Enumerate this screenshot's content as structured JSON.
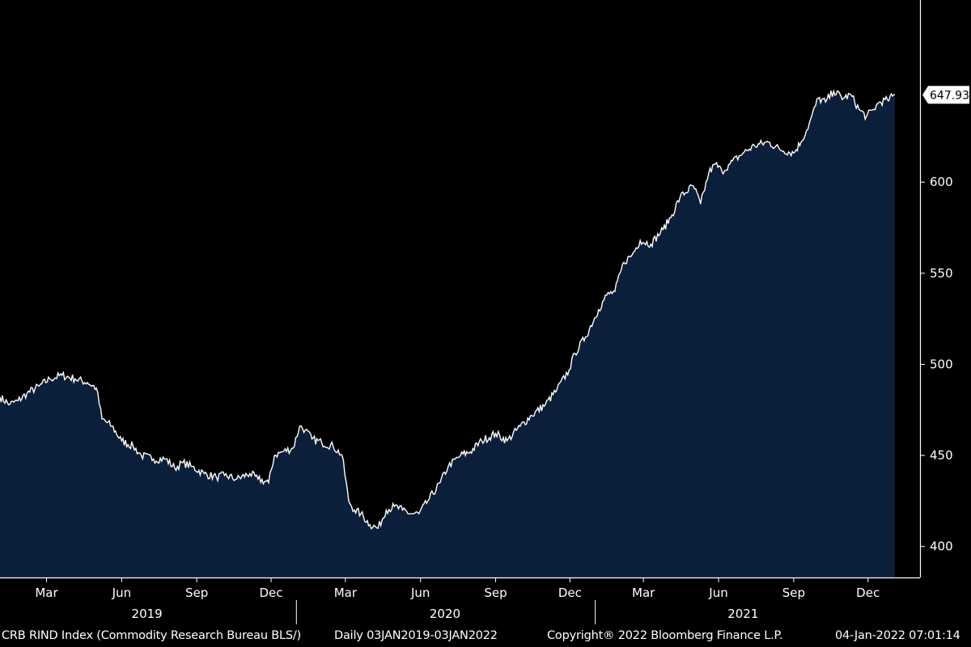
{
  "chart_data": {
    "type": "area",
    "title": "",
    "xlabel": "",
    "ylabel": "",
    "ylim": [
      383,
      700
    ],
    "xlim": [
      "2019-01-03",
      "2022-01-03"
    ],
    "grid": false,
    "y_ticks": [
      "400",
      "450",
      "500",
      "550",
      "600"
    ],
    "x_month_ticks": [
      {
        "label": "Mar",
        "date": "2019-03-01"
      },
      {
        "label": "Jun",
        "date": "2019-06-01"
      },
      {
        "label": "Sep",
        "date": "2019-09-01"
      },
      {
        "label": "Dec",
        "date": "2019-12-01"
      },
      {
        "label": "Mar",
        "date": "2020-03-01"
      },
      {
        "label": "Jun",
        "date": "2020-06-01"
      },
      {
        "label": "Sep",
        "date": "2020-09-01"
      },
      {
        "label": "Dec",
        "date": "2020-12-01"
      },
      {
        "label": "Mar",
        "date": "2021-03-01"
      },
      {
        "label": "Jun",
        "date": "2021-06-01"
      },
      {
        "label": "Sep",
        "date": "2021-09-01"
      },
      {
        "label": "Dec",
        "date": "2021-12-01"
      }
    ],
    "x_years": [
      {
        "label": "2019",
        "date": "2019-07-02"
      },
      {
        "label": "2020",
        "date": "2020-07-01"
      },
      {
        "label": "2021",
        "date": "2021-07-01"
      }
    ],
    "year_separators": [
      "2020-01-01",
      "2021-01-01"
    ],
    "last_value": "647.93",
    "series": [
      {
        "x": [
          "2019-01-03",
          "2019-01-15",
          "2019-01-25",
          "2019-02-05",
          "2019-02-20",
          "2019-03-05",
          "2019-03-20",
          "2019-04-05",
          "2019-04-20",
          "2019-05-01",
          "2019-05-08",
          "2019-05-20",
          "2019-06-01",
          "2019-06-15",
          "2019-06-25",
          "2019-07-10",
          "2019-07-25",
          "2019-08-05",
          "2019-08-15",
          "2019-08-25",
          "2019-09-10",
          "2019-09-25",
          "2019-10-05",
          "2019-10-20",
          "2019-11-05",
          "2019-11-15",
          "2019-11-28",
          "2019-12-05",
          "2019-12-15",
          "2019-12-28",
          "2020-01-05",
          "2020-01-12",
          "2020-01-20",
          "2020-02-01",
          "2020-02-15",
          "2020-02-26",
          "2020-03-05",
          "2020-03-12",
          "2020-03-20",
          "2020-03-31",
          "2020-04-10",
          "2020-04-20",
          "2020-04-30",
          "2020-05-10",
          "2020-05-20",
          "2020-05-30",
          "2020-06-10",
          "2020-06-25",
          "2020-07-05",
          "2020-07-20",
          "2020-08-01",
          "2020-08-15",
          "2020-09-01",
          "2020-09-15",
          "2020-10-01",
          "2020-10-15",
          "2020-11-01",
          "2020-11-15",
          "2020-11-30",
          "2020-12-07",
          "2020-12-20",
          "2021-01-05",
          "2021-01-15",
          "2021-01-25",
          "2021-02-05",
          "2021-02-15",
          "2021-02-25",
          "2021-03-10",
          "2021-03-25",
          "2021-04-05",
          "2021-04-15",
          "2021-05-01",
          "2021-05-10",
          "2021-05-20",
          "2021-05-28",
          "2021-06-05",
          "2021-06-15",
          "2021-07-01",
          "2021-07-15",
          "2021-08-01",
          "2021-08-15",
          "2021-09-01",
          "2021-09-10",
          "2021-09-20",
          "2021-10-01",
          "2021-10-10",
          "2021-10-20",
          "2021-11-01",
          "2021-11-10",
          "2021-11-20",
          "2021-11-29",
          "2021-12-08",
          "2021-12-15",
          "2021-12-25",
          "2022-01-03"
        ],
        "y": [
          482,
          478,
          480,
          484,
          488,
          492,
          494,
          492,
          490,
          487,
          470,
          466,
          458,
          455,
          450,
          448,
          448,
          443,
          446,
          444,
          440,
          438,
          439,
          437,
          440,
          437,
          435,
          450,
          452,
          454,
          466,
          464,
          459,
          457,
          455,
          450,
          425,
          420,
          418,
          412,
          410,
          420,
          422,
          420,
          418,
          418,
          425,
          435,
          444,
          450,
          452,
          458,
          462,
          458,
          466,
          472,
          478,
          486,
          497,
          506,
          515,
          530,
          538,
          540,
          556,
          560,
          568,
          566,
          574,
          582,
          592,
          598,
          588,
          605,
          610,
          606,
          610,
          616,
          620,
          622,
          618,
          616,
          622,
          632,
          646,
          644,
          650,
          646,
          648,
          640,
          636,
          640,
          644,
          645,
          647.93
        ]
      }
    ]
  },
  "footer": {
    "source": "CRB RIND Index (Commodity Research Bureau BLS/)",
    "frequency": "Daily 03JAN2019-03JAN2022",
    "copyright": "Copyright® 2022 Bloomberg Finance L.P.",
    "timestamp": "04-Jan-2022 07:01:14"
  },
  "colors": {
    "background": "#000000",
    "area_fill": "#0b1e3a",
    "line": "#ffffff",
    "axis": "#ffffff",
    "badge_fill": "#ffffff",
    "badge_text": "#000000"
  }
}
